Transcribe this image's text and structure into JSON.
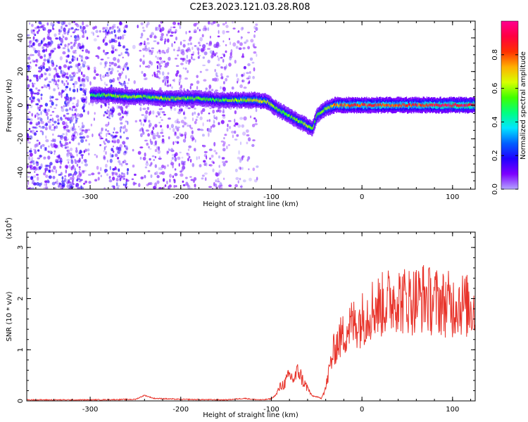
{
  "title": "C2E3.2023.121.03.28.R08",
  "chart_data": [
    {
      "type": "heatmap",
      "xlabel": "Height of straight line (km)",
      "ylabel": "Frequency (Hz)",
      "xlim": [
        -370,
        125
      ],
      "ylim": [
        -50,
        50
      ],
      "x_ticks": [
        -300,
        -200,
        -100,
        0,
        100
      ],
      "y_ticks": [
        -40,
        -20,
        0,
        20,
        40
      ],
      "colorbar": {
        "label": "Normalized spectral amplitude",
        "range": [
          0,
          1
        ],
        "ticks": [
          0.0,
          0.2,
          0.4,
          0.6,
          0.8
        ],
        "colors": [
          "#b3a5ff",
          "#7d00ff",
          "#2000ff",
          "#0060ff",
          "#00e5ff",
          "#00ff80",
          "#40ff00",
          "#d8ff00",
          "#ffb000",
          "#ff3000",
          "#ff0040",
          "#ff0090"
        ]
      },
      "ridge": [
        {
          "x": -295,
          "y": 6,
          "amp": 0.45
        },
        {
          "x": -280,
          "y": 6,
          "amp": 0.5
        },
        {
          "x": -260,
          "y": 5,
          "amp": 0.55
        },
        {
          "x": -240,
          "y": 5,
          "amp": 0.5
        },
        {
          "x": -220,
          "y": 4,
          "amp": 0.55
        },
        {
          "x": -200,
          "y": 4,
          "amp": 0.5
        },
        {
          "x": -180,
          "y": 4,
          "amp": 0.5
        },
        {
          "x": -160,
          "y": 3,
          "amp": 0.45
        },
        {
          "x": -140,
          "y": 3,
          "amp": 0.55
        },
        {
          "x": -120,
          "y": 3,
          "amp": 0.6
        },
        {
          "x": -105,
          "y": 2,
          "amp": 0.55
        },
        {
          "x": -95,
          "y": -2,
          "amp": 0.5
        },
        {
          "x": -85,
          "y": -5,
          "amp": 0.5
        },
        {
          "x": -75,
          "y": -8,
          "amp": 0.5
        },
        {
          "x": -65,
          "y": -11,
          "amp": 0.55
        },
        {
          "x": -55,
          "y": -14,
          "amp": 0.5
        },
        {
          "x": -50,
          "y": -6,
          "amp": 0.5
        },
        {
          "x": -40,
          "y": -2,
          "amp": 0.55
        },
        {
          "x": -30,
          "y": 0,
          "amp": 0.7
        },
        {
          "x": -15,
          "y": 0,
          "amp": 0.75
        },
        {
          "x": 0,
          "y": 0,
          "amp": 0.8
        },
        {
          "x": 20,
          "y": 0,
          "amp": 0.8
        },
        {
          "x": 40,
          "y": 0,
          "amp": 0.75
        },
        {
          "x": 60,
          "y": 0,
          "amp": 0.8
        },
        {
          "x": 80,
          "y": 0,
          "amp": 0.85
        },
        {
          "x": 100,
          "y": 0,
          "amp": 0.9
        },
        {
          "x": 125,
          "y": 0,
          "amp": 0.9
        }
      ]
    },
    {
      "type": "line",
      "xlabel": "Height of straight line (km)",
      "ylabel": "SNR (10 * v/v)",
      "y_multiplier": "(x10",
      "y_multiplier_exp": "4",
      "y_multiplier_close": ")",
      "xlim": [
        -370,
        125
      ],
      "ylim": [
        0,
        3.3
      ],
      "x_ticks": [
        -300,
        -200,
        -100,
        0,
        100
      ],
      "y_ticks": [
        0,
        1,
        2,
        3
      ],
      "line_color": "#e8332a",
      "series": [
        {
          "x": [
            -370,
            -300,
            -250,
            -240,
            -230,
            -200,
            -150,
            -130,
            -120,
            -110,
            -100,
            -95,
            -90,
            -85,
            -80,
            -75,
            -70,
            -65,
            -60,
            -55,
            -50,
            -45,
            -40,
            -35,
            -30,
            -25,
            -20,
            -15,
            -10,
            -5,
            0,
            5,
            10,
            15,
            20,
            25,
            30,
            34,
            38,
            45,
            50,
            55,
            60,
            65,
            70,
            75,
            80,
            85,
            90,
            95,
            100,
            105,
            110,
            115,
            120,
            125
          ],
          "y": [
            0.02,
            0.02,
            0.03,
            0.11,
            0.05,
            0.03,
            0.02,
            0.05,
            0.03,
            0.02,
            0.04,
            0.12,
            0.28,
            0.35,
            0.5,
            0.42,
            0.6,
            0.38,
            0.25,
            0.1,
            0.08,
            0.05,
            0.25,
            0.7,
            1.05,
            1.2,
            1.3,
            1.45,
            1.5,
            1.55,
            1.6,
            1.7,
            1.8,
            1.85,
            1.85,
            1.9,
            1.95,
            2.0,
            2.05,
            1.95,
            2.0,
            1.95,
            2.0,
            2.0,
            2.05,
            1.95,
            1.95,
            1.95,
            1.9,
            1.9,
            1.85,
            1.95,
            1.9,
            1.85,
            1.85,
            1.85
          ]
        }
      ]
    }
  ]
}
